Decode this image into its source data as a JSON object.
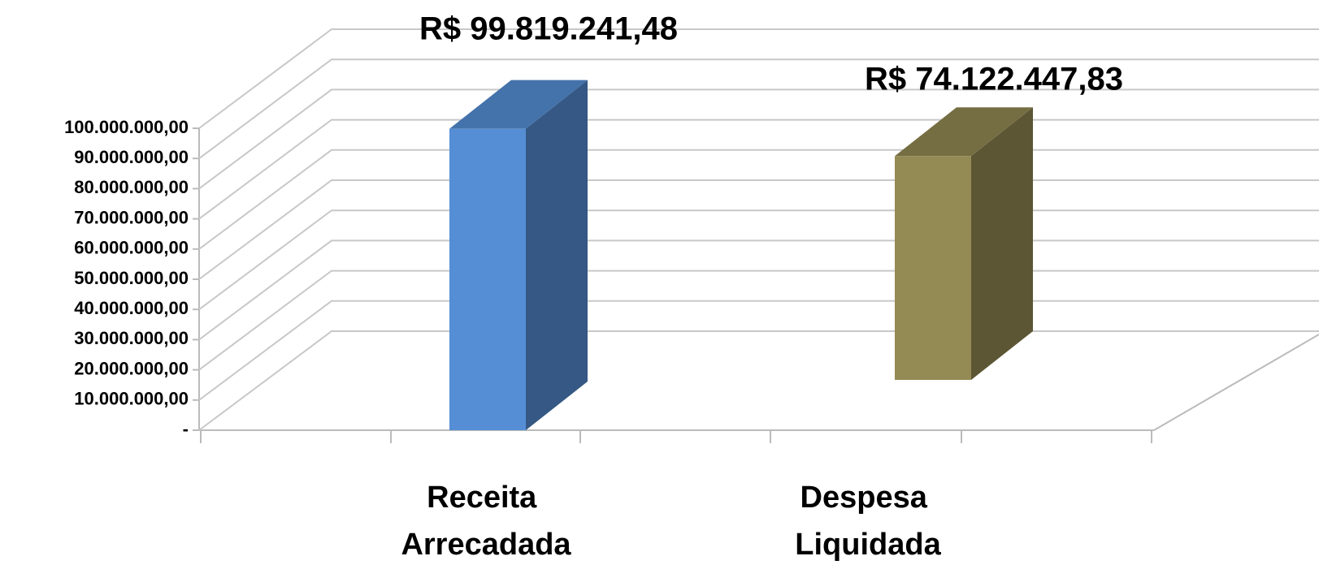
{
  "chart_data": {
    "type": "bar3d",
    "categories": [
      "Receita Arrecadada",
      "Despesa Liquidada"
    ],
    "values": [
      99819241.48,
      74122447.83
    ],
    "value_labels": [
      "R$ 99.819.241,48",
      "R$ 74.122.447,83"
    ],
    "colors": [
      "#558ed5",
      "#948a54"
    ],
    "ylim": [
      0,
      100000000
    ],
    "yticks": [
      {
        "value": 0,
        "label": "-"
      },
      {
        "value": 10000000,
        "label": "10.000.000,00"
      },
      {
        "value": 20000000,
        "label": "20.000.000,00"
      },
      {
        "value": 30000000,
        "label": "30.000.000,00"
      },
      {
        "value": 40000000,
        "label": "40.000.000,00"
      },
      {
        "value": 50000000,
        "label": "50.000.000,00"
      },
      {
        "value": 60000000,
        "label": "60.000.000,00"
      },
      {
        "value": 70000000,
        "label": "70.000.000,00"
      },
      {
        "value": 80000000,
        "label": "80.000.000,00"
      },
      {
        "value": 90000000,
        "label": "90.000.000,00"
      },
      {
        "value": 100000000,
        "label": "100.000.000,00"
      }
    ],
    "grid": true
  }
}
